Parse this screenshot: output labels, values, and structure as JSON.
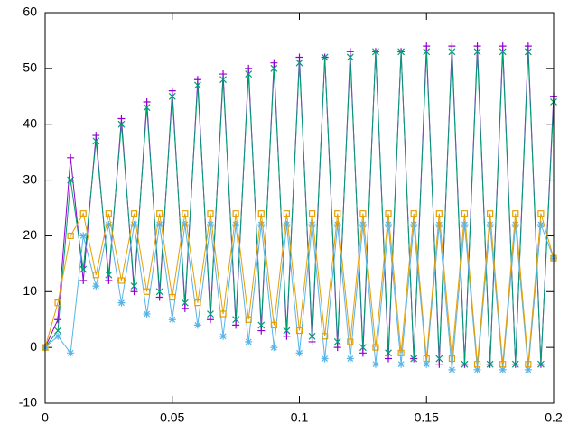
{
  "chart_data": {
    "type": "linespoints",
    "x": [
      0,
      0.005,
      0.01,
      0.015,
      0.02,
      0.025,
      0.03,
      0.035,
      0.04,
      0.045,
      0.05,
      0.055,
      0.06,
      0.065,
      0.07,
      0.075,
      0.08,
      0.085,
      0.09,
      0.095,
      0.1,
      0.105,
      0.11,
      0.115,
      0.12,
      0.125,
      0.13,
      0.135,
      0.14,
      0.145,
      0.15,
      0.155,
      0.16,
      0.165,
      0.17,
      0.175,
      0.18,
      0.185,
      0.19,
      0.195,
      0.2
    ],
    "series": [
      {
        "color": "#9400d3",
        "marker": "plus",
        "values": [
          0,
          5,
          34,
          12,
          38,
          12,
          41,
          10,
          44,
          9,
          46,
          7,
          48,
          5,
          49,
          4,
          50,
          3,
          51,
          2,
          52,
          1,
          52,
          0,
          53,
          -1,
          53,
          -2,
          53,
          -2,
          54,
          -3,
          54,
          -3,
          54,
          -3,
          54,
          -3,
          54,
          -3,
          45
        ]
      },
      {
        "color": "#009e73",
        "marker": "cross",
        "values": [
          0,
          3,
          30,
          14,
          37,
          13,
          40,
          11,
          43,
          10,
          45,
          8,
          47,
          6,
          48,
          5,
          49,
          4,
          50,
          3,
          51,
          2,
          52,
          1,
          52,
          0,
          53,
          -1,
          53,
          -2,
          53,
          -2,
          53,
          -3,
          53,
          -3,
          53,
          -3,
          53,
          -3,
          44
        ]
      },
      {
        "color": "#56b4e9",
        "marker": "star",
        "values": [
          0,
          2,
          -1,
          20,
          11,
          22,
          8,
          22,
          6,
          22,
          5,
          22,
          4,
          22,
          2,
          22,
          1,
          22,
          0,
          22,
          -1,
          22,
          -2,
          22,
          -2,
          22,
          -3,
          22,
          -3,
          22,
          -3,
          22,
          -4,
          22,
          -4,
          22,
          -4,
          22,
          -4,
          22,
          16
        ]
      },
      {
        "color": "#e69f00",
        "marker": "square",
        "values": [
          0,
          8,
          20,
          24,
          13,
          24,
          12,
          24,
          10,
          24,
          9,
          24,
          8,
          24,
          6,
          24,
          5,
          24,
          4,
          24,
          3,
          24,
          2,
          24,
          1,
          24,
          0,
          24,
          -1,
          24,
          -2,
          24,
          -2,
          24,
          -3,
          24,
          -3,
          24,
          -3,
          24,
          16
        ]
      }
    ],
    "xlim": [
      0,
      0.2
    ],
    "xticks": [
      0,
      0.05,
      0.1,
      0.15,
      0.2
    ],
    "ylim": [
      -10,
      60
    ],
    "yticks": [
      -10,
      0,
      10,
      20,
      30,
      40,
      50,
      60
    ]
  }
}
